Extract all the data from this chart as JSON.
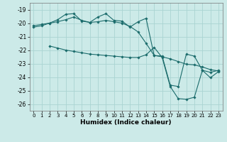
{
  "xlabel": "Humidex (Indice chaleur)",
  "bg_color": "#cceae8",
  "grid_color": "#aad4d2",
  "line_color": "#1a6b6b",
  "ylim": [
    -26.5,
    -18.5
  ],
  "xlim": [
    -0.5,
    23.5
  ],
  "yticks": [
    -26,
    -25,
    -24,
    -23,
    -22,
    -21,
    -20,
    -19
  ],
  "xticks": [
    0,
    1,
    2,
    3,
    4,
    5,
    6,
    7,
    8,
    9,
    10,
    11,
    12,
    13,
    14,
    15,
    16,
    17,
    18,
    19,
    20,
    21,
    22,
    23
  ],
  "lines": [
    {
      "x": [
        0,
        1,
        2,
        3,
        4,
        5,
        6,
        7,
        8,
        9,
        10,
        11,
        12,
        13,
        14,
        15,
        16,
        17,
        18,
        19,
        20,
        21,
        22,
        23
      ],
      "y": [
        -20.2,
        -20.1,
        -20.0,
        -19.9,
        -19.75,
        -19.55,
        -19.8,
        -19.95,
        -19.55,
        -19.3,
        -19.8,
        -19.85,
        -20.3,
        -19.9,
        -19.65,
        -22.4,
        -22.5,
        -22.65,
        -22.85,
        -23.05,
        -23.1,
        -23.25,
        -23.45,
        -23.55
      ]
    },
    {
      "x": [
        0,
        1,
        2,
        3,
        4,
        5,
        6,
        7,
        8,
        9,
        10,
        11,
        12,
        13,
        14,
        15,
        16,
        17,
        18,
        19,
        20,
        21,
        22,
        23
      ],
      "y": [
        -20.3,
        -20.2,
        -20.0,
        -19.75,
        -19.35,
        -19.3,
        -19.85,
        -19.95,
        -19.9,
        -19.8,
        -19.9,
        -20.0,
        -20.25,
        -20.65,
        -21.5,
        -22.4,
        -22.45,
        -24.6,
        -24.7,
        -22.3,
        -22.45,
        -23.5,
        -23.65,
        -23.5
      ]
    },
    {
      "x": [
        2,
        3,
        4,
        5,
        6,
        7,
        8,
        9,
        10,
        11,
        12,
        13,
        14,
        15,
        16,
        17,
        18,
        19,
        20,
        21,
        22,
        23
      ],
      "y": [
        -21.7,
        -21.85,
        -22.0,
        -22.1,
        -22.2,
        -22.3,
        -22.35,
        -22.4,
        -22.45,
        -22.5,
        -22.55,
        -22.55,
        -22.35,
        -21.8,
        -22.55,
        -24.7,
        -25.6,
        -25.65,
        -25.5,
        -23.5,
        -24.05,
        -23.6
      ]
    }
  ]
}
